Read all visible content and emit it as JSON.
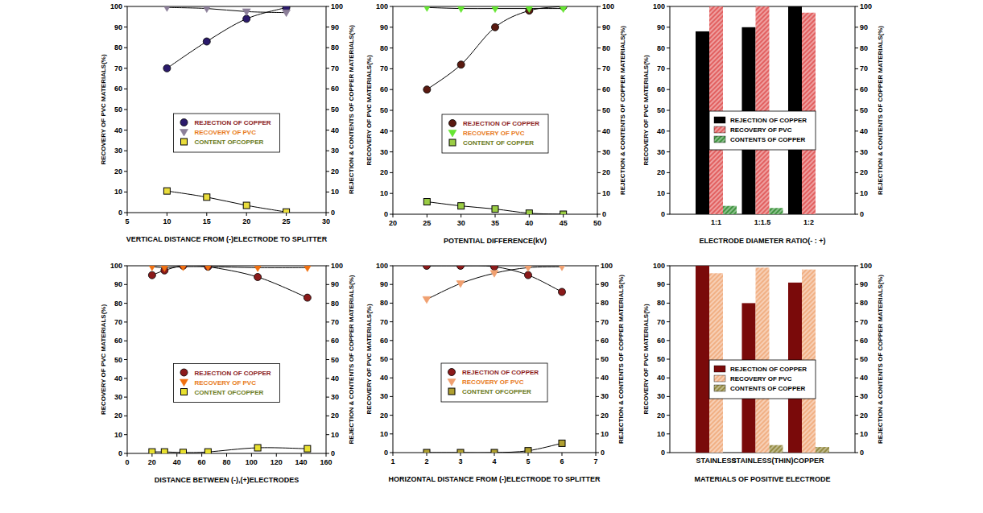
{
  "chart_data": [
    {
      "type": "line",
      "x_label": "VERTICAL DISTANCE FROM (-)ELECTRODE TO SPLITTER",
      "y_label": "RECOVERY OF PVC MATERIALS(%)",
      "y2_label": "REJECTION & CONTENTS OF COPPER MATERIALS(%)",
      "x": [
        10,
        15,
        20,
        25
      ],
      "xlim": [
        5,
        30
      ],
      "xticks": [
        5,
        10,
        15,
        20,
        25,
        30
      ],
      "ylim": [
        0,
        100
      ],
      "yticks": [
        0,
        10,
        20,
        30,
        40,
        50,
        60,
        70,
        80,
        90,
        100
      ],
      "y2lim": [
        0,
        100
      ],
      "y2ticks": [
        0,
        10,
        20,
        30,
        40,
        50,
        60,
        70,
        80,
        90,
        100
      ],
      "grid": false,
      "legend": "center",
      "series": [
        {
          "name": "REJECTION OF COPPER",
          "color": "#2b1a6b",
          "marker": "circle",
          "axis": "y2",
          "values": [
            70,
            83,
            94,
            99.5
          ]
        },
        {
          "name": "RECOVERY OF PVC",
          "color": "#8c7f99",
          "marker": "triangle-down",
          "axis": "y",
          "values": [
            99.5,
            99,
            97.5,
            97
          ]
        },
        {
          "name": "CONTENT OFCOPPER",
          "color": "#e9dc3c",
          "marker": "square",
          "axis": "y2",
          "values": [
            10.5,
            7.5,
            3.5,
            0.3
          ]
        }
      ]
    },
    {
      "type": "line",
      "x_label": "POTENTIAL DIFFERENCE(kV)",
      "y_label": "RECOVERY OF PVC MATERIALS(%)",
      "y2_label": "REJECTION & CONTENTS OF COPPER MATERIALS(%)",
      "x": [
        25,
        30,
        35,
        40,
        45
      ],
      "xlim": [
        20,
        50
      ],
      "xticks": [
        20,
        25,
        30,
        35,
        40,
        45,
        50
      ],
      "ylim": [
        0,
        100
      ],
      "yticks": [
        0,
        10,
        20,
        30,
        40,
        50,
        60,
        70,
        80,
        90,
        100
      ],
      "y2lim": [
        0,
        100
      ],
      "y2ticks": [
        0,
        10,
        20,
        30,
        40,
        50,
        60,
        70,
        80,
        90,
        100
      ],
      "grid": false,
      "legend": "center",
      "series": [
        {
          "name": "REJECTION OF COPPER",
          "color": "#5a1a10",
          "marker": "circle",
          "axis": "y2",
          "values": [
            60,
            72,
            90,
            98,
            100
          ]
        },
        {
          "name": "RECOVERY OF PVC",
          "color": "#66e633",
          "marker": "triangle-down",
          "axis": "y",
          "values": [
            99.5,
            99,
            99,
            99,
            99
          ]
        },
        {
          "name": "CONTENT OF COPPER",
          "color": "#9acc44",
          "marker": "square",
          "axis": "y2",
          "values": [
            6,
            4,
            2.5,
            0.5,
            0
          ]
        }
      ]
    },
    {
      "type": "bar",
      "x_label": "ELECTRODE DIAMETER RATIO(- : +)",
      "y_label": "RECOVERY OF PVC MATERIALS(%)",
      "y2_label": "REJECTION & CONTENTS OF COPPER MATERIALS(%)",
      "categories": [
        "1:1",
        "1:1.5",
        "1:2"
      ],
      "ylim": [
        0,
        100
      ],
      "yticks": [
        0,
        10,
        20,
        30,
        40,
        50,
        60,
        70,
        80,
        90,
        100
      ],
      "y2lim": [
        0,
        100
      ],
      "y2ticks": [
        0,
        10,
        20,
        30,
        40,
        50,
        60,
        70,
        80,
        90,
        100
      ],
      "grid": false,
      "legend": "center",
      "series": [
        {
          "name": "REJECTION OF COPPER",
          "color": "#000000",
          "axis": "y2",
          "values": [
            88,
            90,
            100
          ]
        },
        {
          "name": "RECOVERY OF PVC",
          "color": "#e05050",
          "axis": "y",
          "values": [
            100,
            100,
            97
          ]
        },
        {
          "name": "CONTENTS OF COPPER",
          "color": "#2e8b2e",
          "axis": "y2",
          "values": [
            4,
            3,
            0
          ]
        }
      ]
    },
    {
      "type": "line",
      "x_label": "DISTANCE BETWEEN (-),(+)ELECTRODES",
      "y_label": "RECOVERY OF PVC MATERIALS(%)",
      "y2_label": "REJECTION & CONTENTS OF COPPER MATERIALS(%)",
      "x": [
        20,
        30,
        45,
        65,
        105,
        145
      ],
      "xlim": [
        0,
        160
      ],
      "xticks": [
        0,
        20,
        40,
        60,
        80,
        100,
        120,
        140,
        160
      ],
      "ylim": [
        0,
        100
      ],
      "yticks": [
        0,
        10,
        20,
        30,
        40,
        50,
        60,
        70,
        80,
        90,
        100
      ],
      "y2lim": [
        0,
        100
      ],
      "y2ticks": [
        0,
        10,
        20,
        30,
        40,
        50,
        60,
        70,
        80,
        90,
        100
      ],
      "grid": false,
      "legend": "center",
      "series": [
        {
          "name": "REJECTION OF COPPER",
          "color": "#8b1a1a",
          "marker": "circle",
          "axis": "y2",
          "values": [
            95,
            97.5,
            100,
            99.5,
            94,
            83
          ]
        },
        {
          "name": "RECOVERY OF PVC",
          "color": "#f07010",
          "marker": "triangle-down",
          "axis": "y",
          "values": [
            99.5,
            99,
            99.5,
            99.5,
            99,
            99
          ]
        },
        {
          "name": "CONTENT OFCOPPER",
          "color": "#e8e030",
          "marker": "square",
          "axis": "y2",
          "values": [
            0.8,
            0.8,
            0.5,
            0.8,
            3,
            2.5
          ]
        }
      ]
    },
    {
      "type": "line",
      "x_label": "HORIZONTAL DISTANCE FROM (-)ELECTRODE TO SPLITTER",
      "y_label": "RECOVERY OF PVC MATERIALS(%)",
      "y2_label": "REJECTION & CONTENTS OF COPPER MATERIALS(%)",
      "x": [
        2,
        3,
        4,
        5,
        6
      ],
      "xlim": [
        1,
        7
      ],
      "xticks": [
        1,
        2,
        3,
        4,
        5,
        6,
        7
      ],
      "ylim": [
        0,
        100
      ],
      "yticks": [
        0,
        10,
        20,
        30,
        40,
        50,
        60,
        70,
        80,
        90,
        100
      ],
      "y2lim": [
        0,
        100
      ],
      "y2ticks": [
        0,
        10,
        20,
        30,
        40,
        50,
        60,
        70,
        80,
        90,
        100
      ],
      "grid": false,
      "legend": "center",
      "series": [
        {
          "name": "REJECTION OF COPPER",
          "color": "#8b1a1a",
          "marker": "circle",
          "axis": "y2",
          "values": [
            100,
            100,
            99.5,
            95,
            86
          ]
        },
        {
          "name": "RECOVERY OF PVC",
          "color": "#f0a070",
          "marker": "triangle-down",
          "axis": "y",
          "values": [
            82,
            90.5,
            96,
            99,
            99.5
          ]
        },
        {
          "name": "CONTENT OFCOPPER",
          "color": "#b0a030",
          "marker": "square",
          "axis": "y2",
          "values": [
            0,
            0,
            0,
            1,
            5
          ]
        }
      ]
    },
    {
      "type": "bar",
      "x_label": "MATERIALS OF POSITIVE ELECTRODE",
      "y_label": "RECOVERY OF PVC MATERIALS(%)",
      "y2_label": "REJECTION & CONTENTS OF COPPER MATERIALS(%)",
      "categories": [
        "STAINLESS",
        "STAINLESS(THIN)",
        "COPPER"
      ],
      "ylim": [
        0,
        100
      ],
      "yticks": [
        0,
        10,
        20,
        30,
        40,
        50,
        60,
        70,
        80,
        90,
        100
      ],
      "y2lim": [
        0,
        100
      ],
      "y2ticks": [
        0,
        10,
        20,
        30,
        40,
        50,
        60,
        70,
        80,
        90,
        100
      ],
      "grid": false,
      "legend": "center",
      "series": [
        {
          "name": "REJECTION OF COPPER",
          "color": "#7a0a0a",
          "axis": "y2",
          "values": [
            100,
            80,
            91
          ]
        },
        {
          "name": "RECOVERY OF PVC",
          "color": "#f0a878",
          "axis": "y",
          "values": [
            96,
            99,
            98
          ]
        },
        {
          "name": "CONTENTS OF COPPER",
          "color": "#8a8030",
          "axis": "y2",
          "values": [
            0,
            4,
            3
          ]
        }
      ]
    }
  ]
}
